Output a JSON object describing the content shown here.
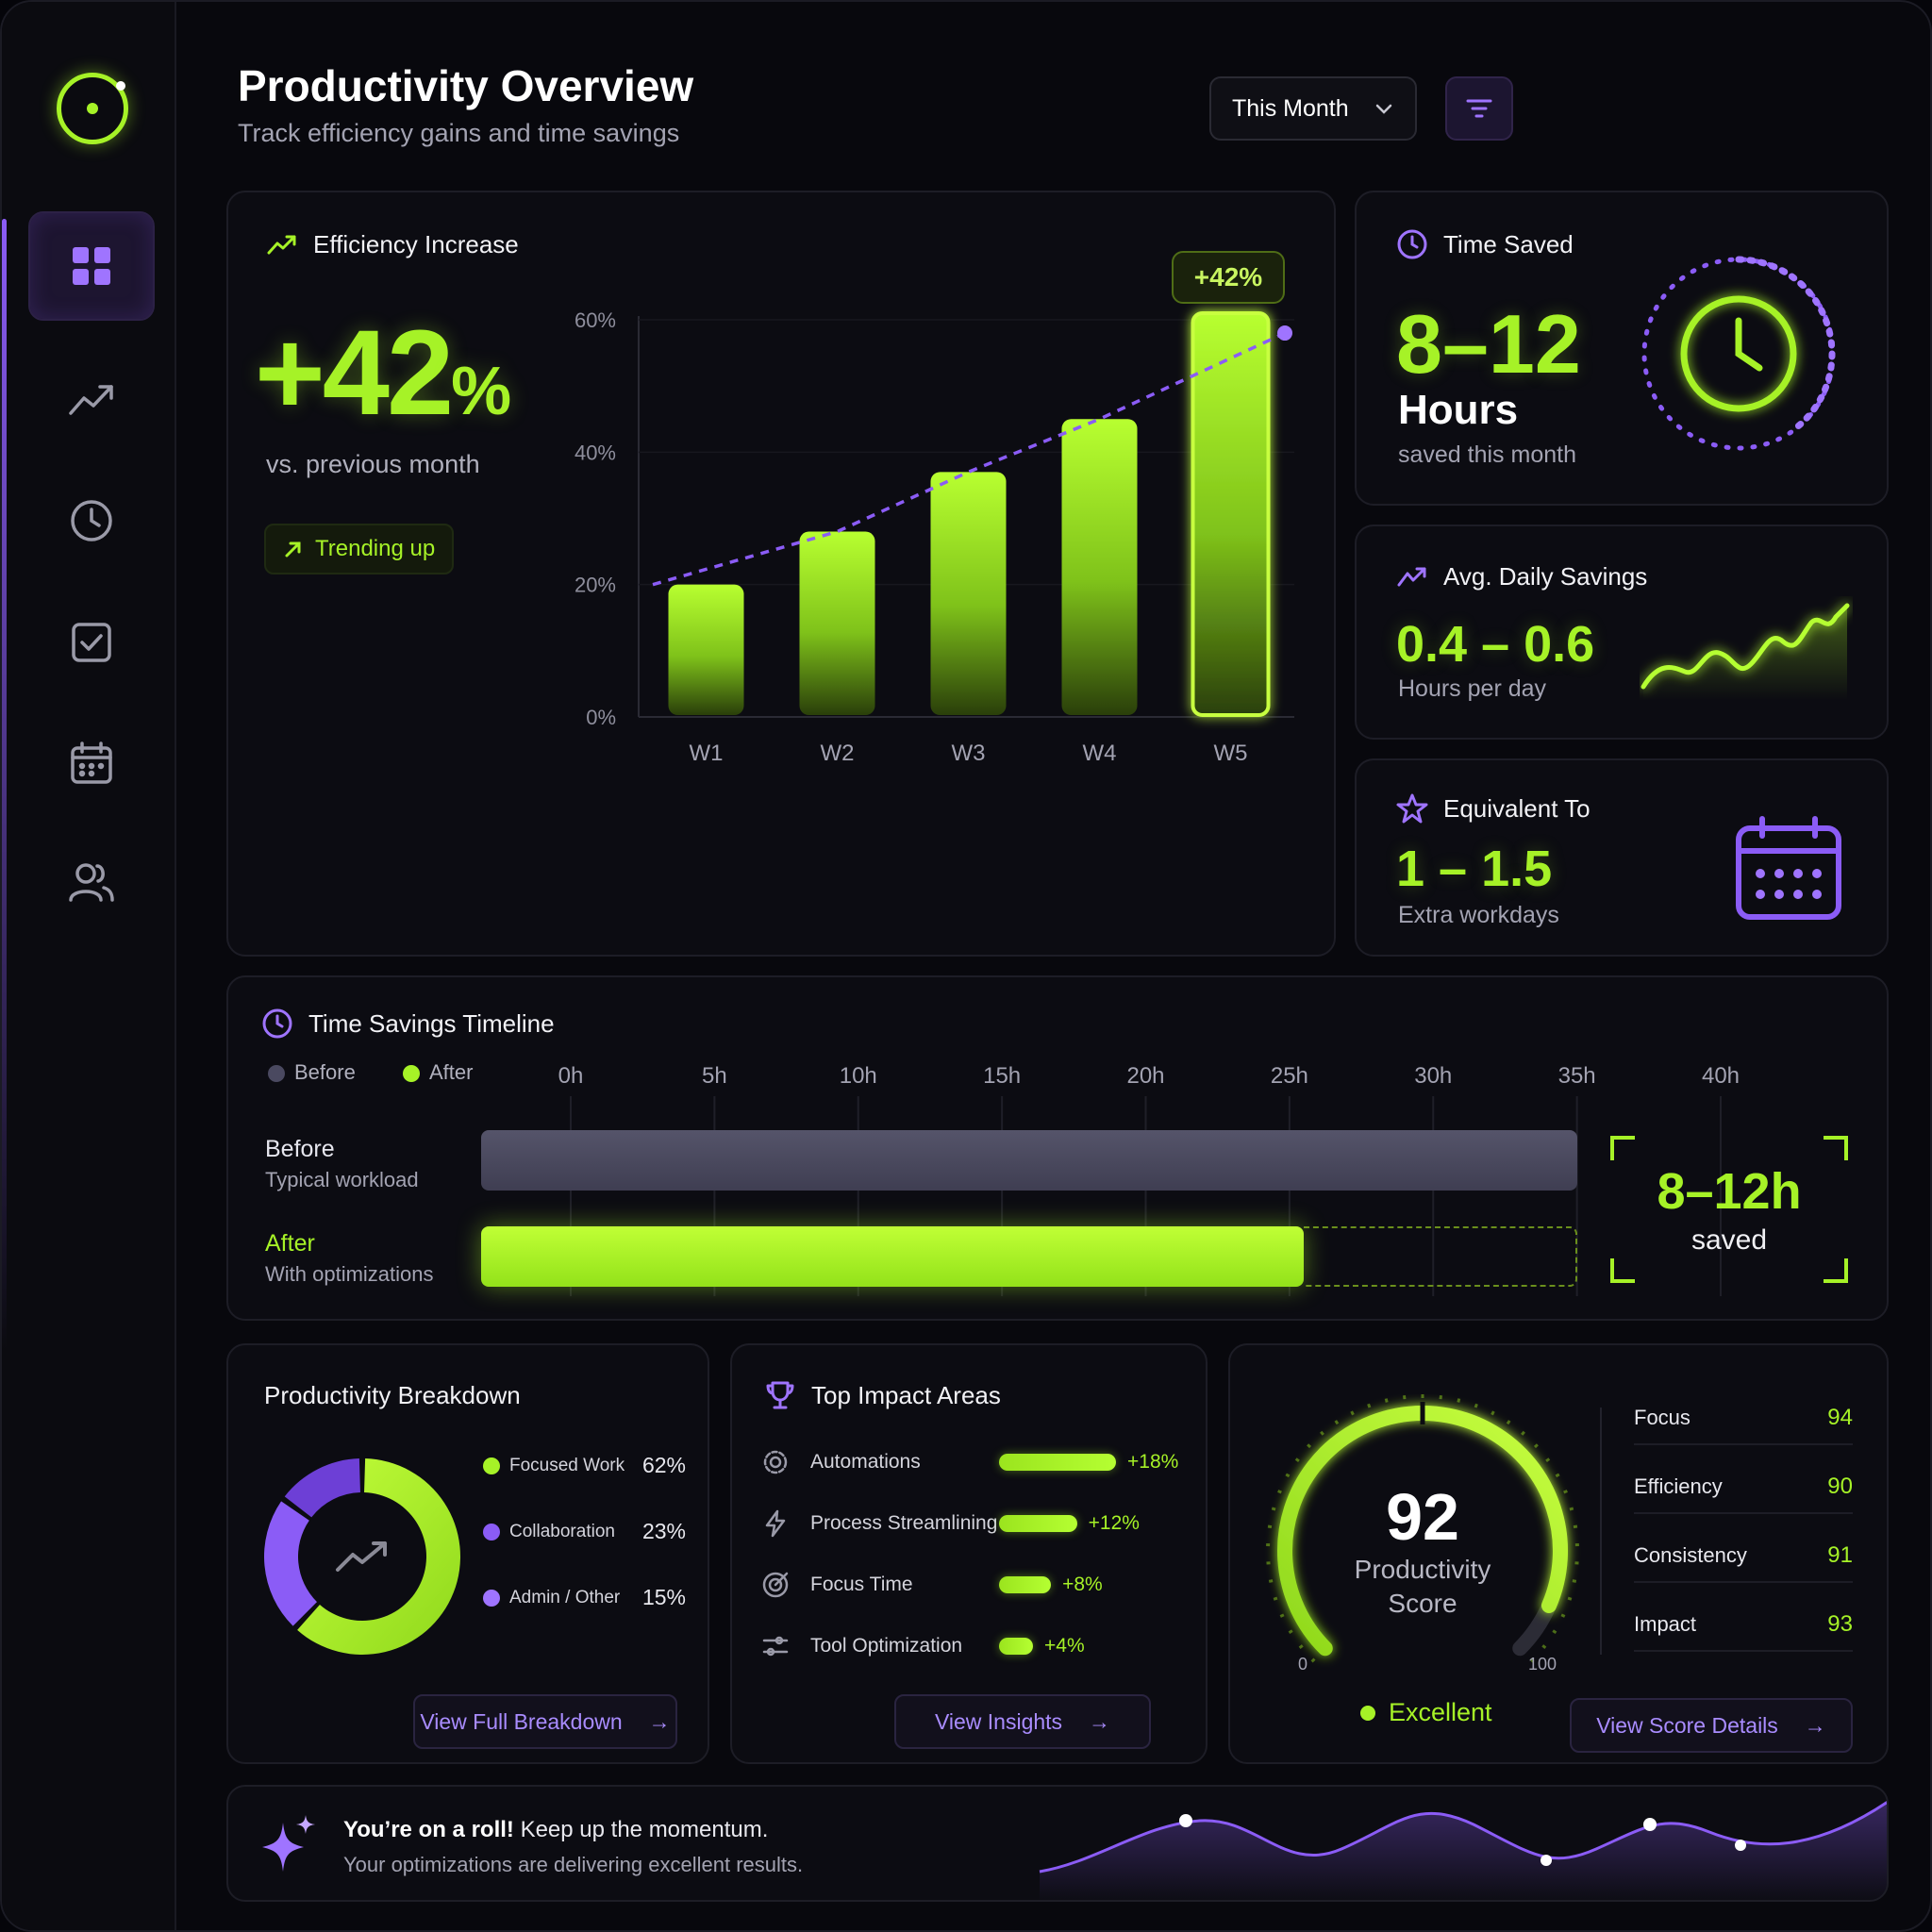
{
  "header": {
    "title": "Productivity Overview",
    "subtitle": "Track efficiency gains and time savings",
    "period": "This Month"
  },
  "colors": {
    "accent": "#a6f227",
    "purple": "#8b5cf6",
    "before_bar": "#4a4960"
  },
  "sidebar": {
    "items": [
      {
        "icon": "dashboard-grid-icon",
        "active": true
      },
      {
        "icon": "trend-line-icon"
      },
      {
        "icon": "clock-icon"
      },
      {
        "icon": "checkbox-icon"
      },
      {
        "icon": "calendar-icon"
      },
      {
        "icon": "users-icon"
      }
    ]
  },
  "efficiency": {
    "title": "Efficiency Increase",
    "value": "+42",
    "unit": "%",
    "comparison": "vs. previous month",
    "trend_label": "Trending up",
    "peak_badge": "+42%"
  },
  "chart_data": {
    "type": "bar",
    "categories": [
      "W1",
      "W2",
      "W3",
      "W4",
      "W5"
    ],
    "values": [
      20,
      28,
      37,
      45,
      61
    ],
    "trend_line": [
      20,
      28,
      37,
      45,
      58
    ],
    "yticks": [
      "0%",
      "20%",
      "40%",
      "60%"
    ],
    "ylim": [
      0,
      60
    ],
    "highlight": "W5"
  },
  "time_saved": {
    "title": "Time Saved",
    "value": "8–12",
    "unit": "Hours",
    "caption": "saved this month"
  },
  "avg_daily": {
    "title": "Avg. Daily Savings",
    "value": "0.4 – 0.6",
    "caption": "Hours per day"
  },
  "equivalent": {
    "title": "Equivalent To",
    "value": "1 – 1.5",
    "caption": "Extra workdays"
  },
  "timeline": {
    "title": "Time Savings Timeline",
    "legend": {
      "before": "Before",
      "after": "After"
    },
    "ticks": [
      "0h",
      "5h",
      "10h",
      "15h",
      "20h",
      "25h",
      "30h",
      "35h",
      "40h"
    ],
    "axis_max": 40,
    "before": {
      "label": "Before",
      "sub": "Typical workload",
      "hours": 38
    },
    "after": {
      "label": "After",
      "sub": "With optimizations",
      "hours": 28.5
    },
    "saved_value": "8–12h",
    "saved_label": "saved"
  },
  "breakdown": {
    "title": "Productivity Breakdown",
    "items": [
      {
        "label": "Focused Work",
        "pct": "62%",
        "value": 62,
        "color": "#a6f227"
      },
      {
        "label": "Collaboration",
        "pct": "23%",
        "value": 23,
        "color": "#8b5cf6"
      },
      {
        "label": "Admin / Other",
        "pct": "15%",
        "value": 15,
        "color": "#9f74ff"
      }
    ],
    "button": "View Full Breakdown"
  },
  "impact": {
    "title": "Top Impact Areas",
    "items": [
      {
        "label": "Automations",
        "value": "+18%",
        "pct": 18,
        "icon": "gear-icon"
      },
      {
        "label": "Process Streamlining",
        "value": "+12%",
        "pct": 12,
        "icon": "lightning-icon"
      },
      {
        "label": "Focus Time",
        "value": "+8%",
        "pct": 8,
        "icon": "target-icon"
      },
      {
        "label": "Tool Optimization",
        "value": "+4%",
        "pct": 4,
        "icon": "sliders-icon"
      }
    ],
    "button": "View Insights"
  },
  "score": {
    "value": "92",
    "value_num": 92,
    "label_line1": "Productivity",
    "label_line2": "Score",
    "min": "0",
    "max": "100",
    "rating": "Excellent",
    "metrics": [
      {
        "label": "Focus",
        "value": "94"
      },
      {
        "label": "Efficiency",
        "value": "90"
      },
      {
        "label": "Consistency",
        "value": "91"
      },
      {
        "label": "Impact",
        "value": "93"
      }
    ],
    "button": "View Score Details"
  },
  "footer": {
    "headline": "You’re on a roll!",
    "headline_rest": " Keep up the momentum.",
    "sub": "Your optimizations are delivering excellent results."
  }
}
